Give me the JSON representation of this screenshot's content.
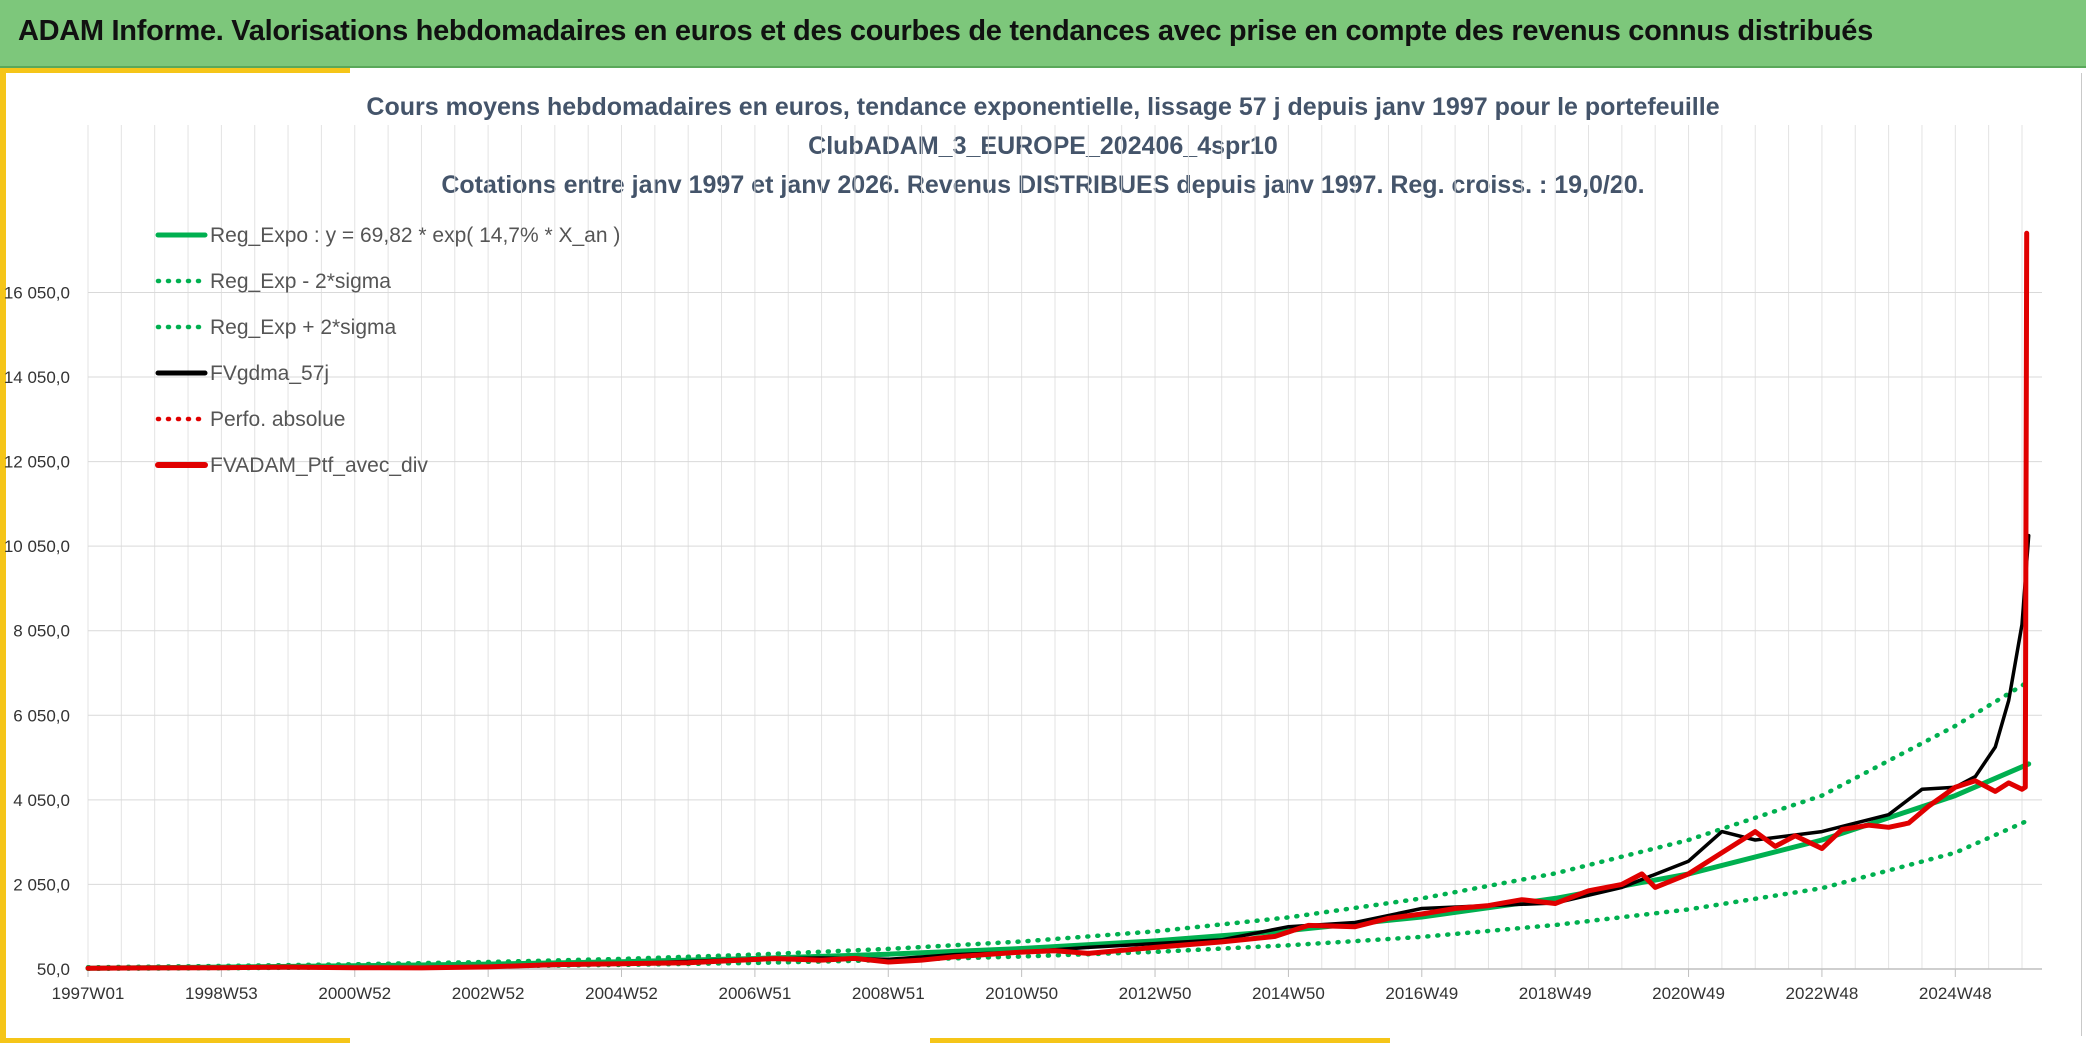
{
  "header": {
    "title": "ADAM Informe. Valorisations hebdomadaires en euros et des courbes de tendances avec prise en compte des revenus connus distribués"
  },
  "colors": {
    "banner": "#7dc77b",
    "accent": "#f5c518",
    "regression": "#00b050",
    "smoothed": "#000000",
    "portfolio": "#e00000"
  },
  "chart_data": {
    "type": "line",
    "title_lines": [
      "Cours moyens hebdomadaires en euros, tendance exponentielle, lissage 57 j depuis janv 1997 pour le portefeuille",
      "ClubADAM_3_EUROPE_202406_4spr10",
      "Cotations entre janv 1997 et janv 2026. Revenus DISTRIBUES depuis janv 1997. Reg. croiss. : 19,0/20."
    ],
    "x_tick_labels": [
      "1997W01",
      "1998W53",
      "2000W52",
      "2002W52",
      "2004W52",
      "2006W51",
      "2008W51",
      "2010W50",
      "2012W50",
      "2014W50",
      "2016W49",
      "2018W49",
      "2020W49",
      "2022W48",
      "2024W48"
    ],
    "x_ticks_year": [
      1997.0,
      1999.0,
      2001.0,
      2003.0,
      2005.0,
      2007.0,
      2009.0,
      2011.0,
      2013.0,
      2015.0,
      2017.0,
      2019.0,
      2021.0,
      2023.0,
      2025.0
    ],
    "xlim": [
      1997.0,
      2026.3
    ],
    "y_tick_labels": [
      "50,0",
      "2 050,0",
      "4 050,0",
      "6 050,0",
      "8 050,0",
      "10 050,0",
      "12 050,0",
      "14 050,0",
      "16 050,0"
    ],
    "y_ticks": [
      50,
      2050,
      4050,
      6050,
      8050,
      10050,
      12050,
      14050,
      16050
    ],
    "ylim": [
      50,
      18000
    ],
    "grid": true,
    "legend_position": "top-left",
    "series": [
      {
        "name": "Reg_Expo : y = 69,82 * exp( 14,7% *  X_an )",
        "style": "solid",
        "color": "#00b050"
      },
      {
        "name": "Reg_Exp - 2*sigma",
        "style": "dotted",
        "color": "#00b050"
      },
      {
        "name": "Reg_Exp + 2*sigma",
        "style": "dotted",
        "color": "#00b050"
      },
      {
        "name": "FVgdma_57j",
        "style": "solid",
        "color": "#000000"
      },
      {
        "name": "Perfo. absolue",
        "style": "dotted",
        "color": "#e00000"
      },
      {
        "name": "FVADAM_Ptf_avec_div",
        "style": "solid",
        "color": "#e00000"
      }
    ],
    "regression": {
      "x": [
        1997,
        1999,
        2001,
        2003,
        2005,
        2007,
        2009,
        2011,
        2013,
        2015,
        2017,
        2019,
        2021,
        2023,
        2025,
        2026.1
      ],
      "y": [
        70,
        94,
        125,
        167,
        223,
        298,
        400,
        535,
        715,
        960,
        1280,
        1720,
        2300,
        3100,
        4150,
        4900
      ]
    },
    "lower_band": {
      "x": [
        1997,
        1999,
        2001,
        2003,
        2005,
        2007,
        2009,
        2011,
        2013,
        2015,
        2017,
        2019,
        2021,
        2023,
        2025,
        2026.1
      ],
      "y": [
        55,
        70,
        90,
        115,
        150,
        195,
        260,
        345,
        455,
        610,
        810,
        1090,
        1460,
        1960,
        2800,
        3570
      ]
    },
    "upper_band": {
      "x": [
        1997,
        1999,
        2001,
        2003,
        2005,
        2007,
        2009,
        2011,
        2013,
        2015,
        2017,
        2019,
        2021,
        2023,
        2025,
        2026.1
      ],
      "y": [
        90,
        120,
        160,
        215,
        290,
        390,
        525,
        700,
        940,
        1270,
        1720,
        2310,
        3100,
        4150,
        5800,
        6850
      ]
    },
    "smoothed": {
      "x": [
        1997,
        1999,
        2001,
        2003,
        2005,
        2007,
        2008,
        2009,
        2010,
        2011,
        2012,
        2013,
        2014,
        2015,
        2016,
        2017,
        2018,
        2019,
        2020,
        2021,
        2021.5,
        2022,
        2023,
        2024,
        2024.5,
        2025,
        2025.3,
        2025.6,
        2025.8,
        2026.0,
        2026.1
      ],
      "y": [
        70,
        75,
        80,
        100,
        170,
        290,
        310,
        280,
        390,
        450,
        560,
        650,
        740,
        1050,
        1150,
        1480,
        1550,
        1610,
        1980,
        2600,
        3300,
        3100,
        3300,
        3700,
        4300,
        4350,
        4600,
        5300,
        6400,
        8200,
        10300
      ]
    },
    "portfolio": {
      "x": [
        1997,
        1998,
        1999,
        2000,
        2001,
        2002,
        2003,
        2004,
        2005,
        2006,
        2006.8,
        2007.3,
        2008,
        2008.5,
        2009,
        2009.5,
        2010,
        2011,
        2011.5,
        2012,
        2013,
        2014,
        2014.8,
        2015.3,
        2016,
        2016.5,
        2017,
        2017.5,
        2018,
        2018.5,
        2019,
        2019.5,
        2020,
        2020.3,
        2020.5,
        2021,
        2021.5,
        2022,
        2022.3,
        2022.6,
        2023,
        2023.3,
        2023.7,
        2024,
        2024.3,
        2024.6,
        2025,
        2025.3,
        2025.6,
        2025.8,
        2026.0,
        2026.05,
        2026.07
      ],
      "y": [
        70,
        75,
        80,
        95,
        80,
        75,
        100,
        155,
        175,
        200,
        260,
        295,
        260,
        300,
        215,
        260,
        340,
        450,
        480,
        420,
        560,
        690,
        820,
        1080,
        1050,
        1250,
        1350,
        1480,
        1550,
        1690,
        1600,
        1900,
        2050,
        2300,
        1980,
        2300,
        2800,
        3300,
        2950,
        3200,
        2900,
        3350,
        3450,
        3400,
        3500,
        3900,
        4350,
        4500,
        4250,
        4450,
        4300,
        4350,
        17450
      ]
    }
  }
}
